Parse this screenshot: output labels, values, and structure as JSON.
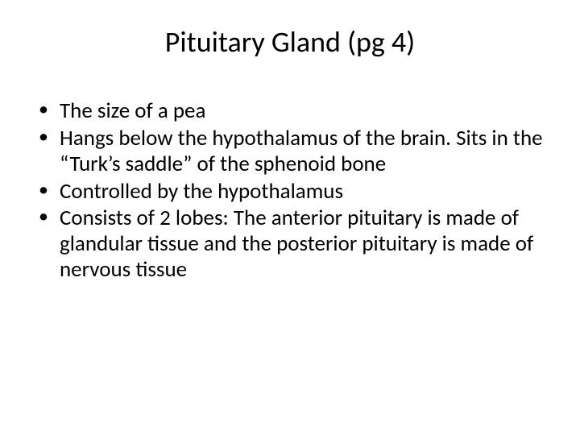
{
  "slide": {
    "title": "Pituitary Gland (pg 4)",
    "bullets": [
      "The size of a pea",
      "Hangs below the hypothalamus of the brain. Sits in the “Turk’s saddle” of the sphenoid bone",
      "Controlled by the hypothalamus",
      "Consists of 2 lobes: The anterior pituitary is made of glandular tissue and the posterior pituitary is made of nervous tissue"
    ],
    "background_color": "#ffffff",
    "text_color": "#000000",
    "title_fontsize": 36,
    "body_fontsize": 27,
    "font_family": "Calibri"
  }
}
